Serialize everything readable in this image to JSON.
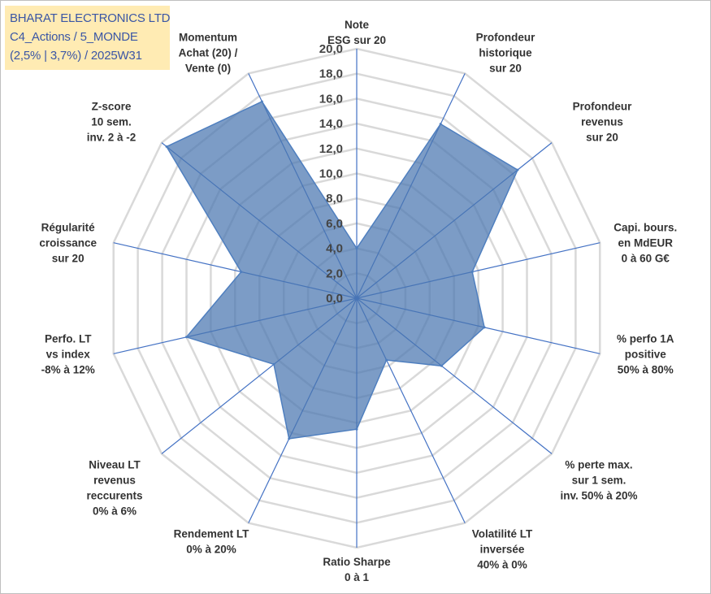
{
  "title": {
    "lines": [
      "BHARAT ELECTRONICS LTD",
      "C4_Actions / 5_MONDE",
      "(2,5% | 3,7%) / 2025W31"
    ]
  },
  "chart_data": {
    "type": "radar",
    "r_min": 0,
    "r_max": 20,
    "ticks": [
      "0,0",
      "2,0",
      "4,0",
      "6,0",
      "8,0",
      "10,0",
      "12,0",
      "14,0",
      "16,0",
      "18,0",
      "20,0"
    ],
    "grid": true,
    "colors": {
      "fill": "#4a76b0",
      "stroke": "#4f7fbf",
      "grid": "#d9d9d9",
      "spoke": "#4472c4"
    },
    "axes": [
      {
        "label": [
          "Note",
          "ESG sur 20"
        ],
        "value": 4.0
      },
      {
        "label": [
          "Profondeur",
          "historique",
          "sur 20"
        ],
        "value": 15.5
      },
      {
        "label": [
          "Profondeur",
          "revenus",
          "sur 20"
        ],
        "value": 16.5
      },
      {
        "label": [
          "Capi. bours.",
          "en MdEUR",
          "0 à 60 G€"
        ],
        "value": 9.5
      },
      {
        "label": [
          "% perfo 1A",
          "positive",
          "50% à 80%"
        ],
        "value": 10.5
      },
      {
        "label": [
          "% perte max.",
          "sur 1 sem.",
          "inv. 50% à 20%"
        ],
        "value": 8.7
      },
      {
        "label": [
          "Volatilité LT",
          "inversée",
          "40% à 0%"
        ],
        "value": 5.5
      },
      {
        "label": [
          "Ratio Sharpe",
          "0 à 1"
        ],
        "value": 10.5
      },
      {
        "label": [
          "Rendement LT",
          "0% à 20%"
        ],
        "value": 12.5
      },
      {
        "label": [
          "Niveau LT",
          "revenus",
          "reccurents",
          "0% à 6%"
        ],
        "value": 8.5
      },
      {
        "label": [
          "Perfo. LT",
          "vs index",
          "-8% à 12%"
        ],
        "value": 14.0
      },
      {
        "label": [
          "Régularité",
          "croissance",
          "sur 20"
        ],
        "value": 9.5
      },
      {
        "label": [
          "Z-score",
          "10 sem.",
          "inv. 2 à -2"
        ],
        "value": 19.5
      },
      {
        "label": [
          "Momentum",
          "Achat (20) /",
          "Vente (0)"
        ],
        "value": 17.5
      }
    ]
  }
}
